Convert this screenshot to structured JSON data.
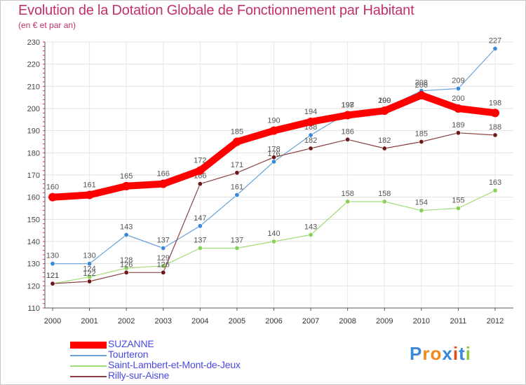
{
  "chart_data": {
    "type": "line",
    "title": "Evolution de la Dotation Globale de Fonctionnement par Habitant",
    "subtitle": "(en € et par an)",
    "xlabel": "",
    "ylabel": "",
    "categories": [
      "2000",
      "2001",
      "2002",
      "2003",
      "2004",
      "2005",
      "2006",
      "2007",
      "2008",
      "2009",
      "2010",
      "2011",
      "2012"
    ],
    "ylim": [
      110,
      230
    ],
    "yticks": [
      110,
      120,
      130,
      140,
      150,
      160,
      170,
      180,
      190,
      200,
      210,
      220,
      230
    ],
    "legend_position": "bottom-left",
    "series": [
      {
        "name": "SUZANNE",
        "color": "#ff0000",
        "marker_color": "#ff0000",
        "emphasis": true,
        "values": [
          160,
          161,
          165,
          166,
          172,
          185,
          190,
          194,
          197,
          199,
          206,
          200,
          198
        ]
      },
      {
        "name": "Tourteron",
        "color": "#6aa2d8",
        "marker_color": "#3a88d8",
        "emphasis": false,
        "values": [
          130,
          130,
          143,
          137,
          147,
          161,
          176,
          188,
          198,
          200,
          208,
          209,
          227
        ]
      },
      {
        "name": "Saint-Lambert-et-Mont-de-Jeux",
        "color": "#a0dc78",
        "marker_color": "#88d058",
        "emphasis": false,
        "values": [
          121,
          124,
          128,
          129,
          137,
          137,
          140,
          143,
          158,
          158,
          154,
          155,
          163
        ]
      },
      {
        "name": "Rilly-sur-Aisne",
        "color": "#8a4040",
        "marker_color": "#6a1a1a",
        "emphasis": false,
        "values": [
          121,
          122,
          126,
          126,
          166,
          171,
          178,
          182,
          186,
          182,
          185,
          189,
          188
        ]
      }
    ]
  },
  "logo": {
    "text": "Proxiti",
    "letters": [
      "P",
      "r",
      "o",
      "x",
      "i",
      "t",
      "i"
    ],
    "colors": [
      "#3a8ad8",
      "#f08a1a",
      "#f08a1a",
      "#3a8ad8",
      "#e84a1a",
      "#3a8ad8",
      "#8ac838"
    ]
  }
}
